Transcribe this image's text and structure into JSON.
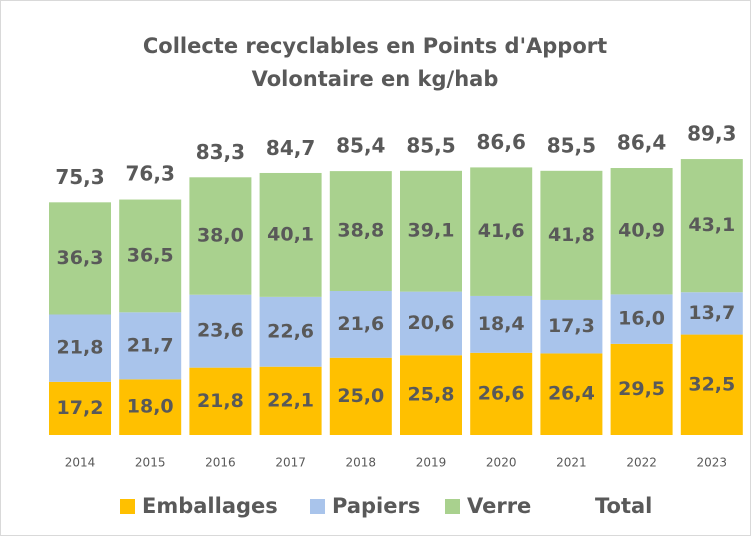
{
  "chart_data": {
    "type": "stacked_bar",
    "title": [
      "Collecte recyclables en Points d'Apport",
      "Volontaire en kg/hab"
    ],
    "categories": [
      "2014",
      "2015",
      "2016",
      "2017",
      "2018",
      "2019",
      "2020",
      "2021",
      "2022",
      "2023"
    ],
    "series": [
      {
        "name": "Emballages",
        "color": "#ffc000",
        "values": [
          17.2,
          18.0,
          21.8,
          22.1,
          25.0,
          25.8,
          26.6,
          26.4,
          29.5,
          32.5
        ],
        "value_labels": [
          "17,2",
          "18,0",
          "21,8",
          "22,1",
          "25,0",
          "25,8",
          "26,6",
          "26,4",
          "29,5",
          "32,5"
        ]
      },
      {
        "name": "Papiers",
        "color": "#a9c4eb",
        "values": [
          21.8,
          21.7,
          23.6,
          22.6,
          21.6,
          20.6,
          18.4,
          17.3,
          16.0,
          13.7
        ],
        "value_labels": [
          "21,8",
          "21,7",
          "23,6",
          "22,6",
          "21,6",
          "20,6",
          "18,4",
          "17,3",
          "16,0",
          "13,7"
        ]
      },
      {
        "name": "Verre",
        "color": "#a9d18e",
        "values": [
          36.3,
          36.5,
          38.0,
          40.1,
          38.8,
          39.1,
          41.6,
          41.8,
          40.9,
          43.1
        ],
        "value_labels": [
          "36,3",
          "36,5",
          "38,0",
          "40,1",
          "38,8",
          "39,1",
          "41,6",
          "41,8",
          "40,9",
          "43,1"
        ]
      },
      {
        "name": "Total",
        "values": [
          75.3,
          76.3,
          83.3,
          84.7,
          85.4,
          85.5,
          86.6,
          85.5,
          86.4,
          89.3
        ],
        "value_labels": [
          "75,3",
          "76,3",
          "83,3",
          "84,7",
          "85,4",
          "85,5",
          "86,6",
          "85,5",
          "86,4",
          "89,3"
        ]
      }
    ]
  }
}
